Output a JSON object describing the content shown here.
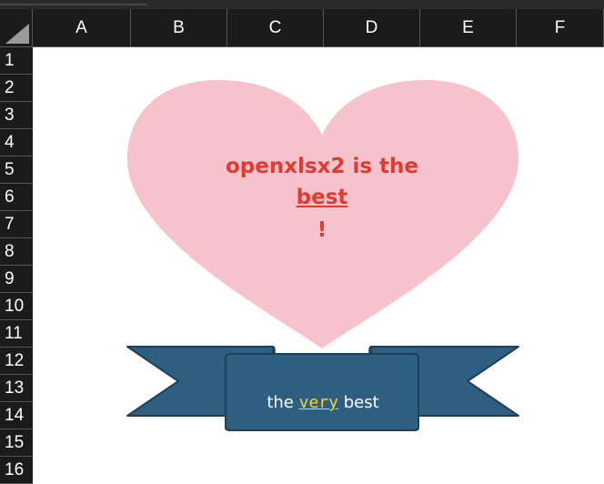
{
  "sheet": {
    "columns": [
      "A",
      "B",
      "C",
      "D",
      "E",
      "F"
    ],
    "rows": [
      "1",
      "2",
      "3",
      "4",
      "5",
      "6",
      "7",
      "8",
      "9",
      "10",
      "11",
      "12",
      "13",
      "14",
      "15",
      "16"
    ]
  },
  "heart": {
    "line1": "openxlsx2 is the",
    "line2": "best",
    "line3": "!",
    "fill_color": "#f6c2cb",
    "text_color": "#e23a2e"
  },
  "ribbon": {
    "text_before": "the ",
    "text_emphasis": "very",
    "text_after": " best",
    "fill_color": "#2e5f80",
    "emphasis_color": "#f7d43a"
  }
}
